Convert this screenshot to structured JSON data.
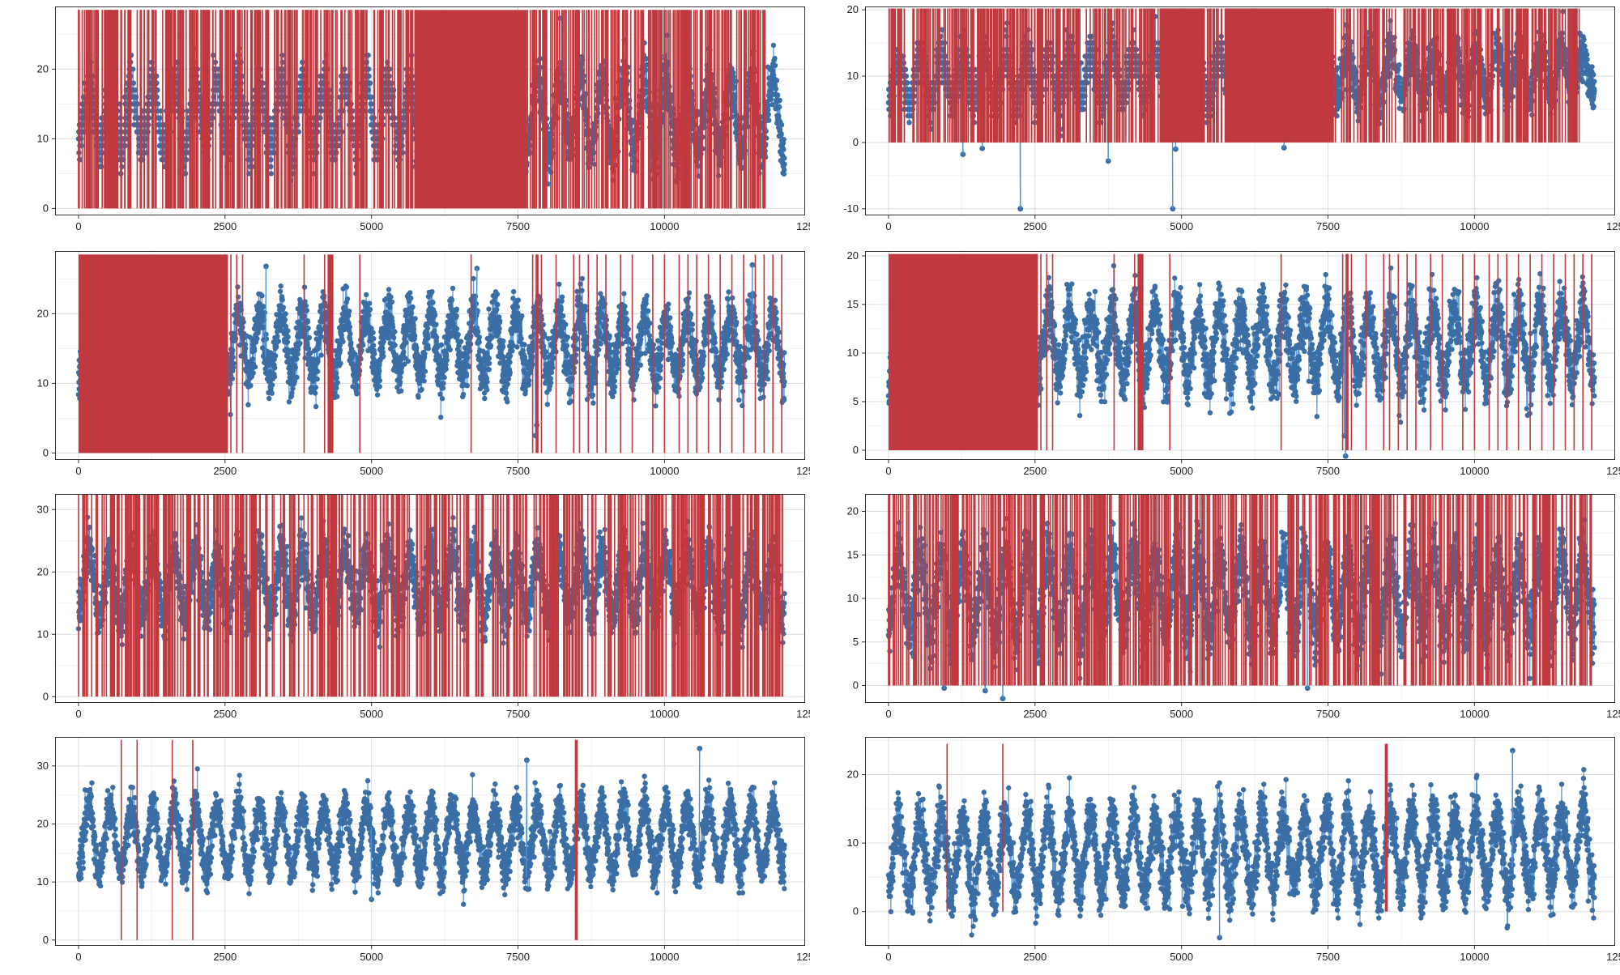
{
  "chart_data": [
    {
      "type": "line",
      "panel": 1,
      "xlim": [
        -400,
        12400
      ],
      "ylim": [
        -1,
        29
      ],
      "x_ticks": [
        0,
        2500,
        5000,
        7500,
        10000,
        12500
      ],
      "y_ticks": [
        0,
        10,
        20
      ],
      "grid": true,
      "legend": "none",
      "series": [
        {
          "values": {
            "n_points": 12050,
            "mean": 13.5,
            "seasonal_amplitude": 4.5,
            "period": 365,
            "noise": 1.8,
            "spike_min": -9.5,
            "spike_max": 27.5,
            "mean_trend_per_day": 0.0,
            "amp_trend_per_day": 8e-05,
            "outliers": [
              [
                8220,
                27.3
              ]
            ],
            "discrete_until": 5750
          },
          "color": "#3a6ea5",
          "line_color": "#4a90d9"
        },
        {
          "values": {
            "span_start": 0,
            "span_end": 11800,
            "top": 28.5,
            "bottom": 0,
            "density_per_day": 0.05,
            "dense_blocks": [
              [
                5750,
                7650
              ]
            ],
            "tail_lines": [
              8150,
              8250,
              8450,
              8600,
              8950,
              9150,
              9300,
              9800,
              10100,
              10300,
              10500,
              10800,
              11050,
              11300,
              11550
            ]
          },
          "color": "#c0393e"
        }
      ]
    },
    {
      "type": "line",
      "panel": 2,
      "xlim": [
        -400,
        12400
      ],
      "ylim": [
        -11,
        20.5
      ],
      "x_ticks": [
        0,
        2500,
        5000,
        7500,
        10000,
        12500
      ],
      "y_ticks": [
        -10,
        0,
        10,
        20
      ],
      "grid": true,
      "legend": "none",
      "series": [
        {
          "values": {
            "n_points": 12050,
            "mean": 9.5,
            "seasonal_amplitude": 3.5,
            "period": 365,
            "noise": 1.7,
            "spike_min": -9.5,
            "spike_max": 27.5,
            "mean_trend_per_day": 0.0001,
            "amp_trend_per_day": 0.0,
            "outliers": [
              [
                1270,
                -1.8
              ],
              [
                1600,
                -0.9
              ],
              [
                2250,
                -10
              ],
              [
                3750,
                -2.8
              ],
              [
                4850,
                -10
              ],
              [
                4900,
                -1
              ],
              [
                6750,
                -0.8
              ],
              [
                10600,
                13.5
              ],
              [
                11500,
                16.5
              ]
            ],
            "discrete_until": 5750
          },
          "color": "#3a6ea5",
          "line_color": "#4a90d9"
        },
        {
          "values": {
            "span_start": 0,
            "span_end": 11800,
            "top": 20.2,
            "bottom": 0,
            "density_per_day": 0.05,
            "dense_blocks": [
              [
                2550,
                2620
              ],
              [
                4650,
                5400
              ],
              [
                5750,
                7600
              ]
            ],
            "tail_lines": [
              8150,
              8300,
              8500,
              8650,
              8850,
              9050,
              9250,
              9450,
              9600,
              9850,
              10050,
              10300,
              10550,
              10750,
              11050,
              11300,
              11550,
              11750
            ]
          },
          "color": "#c0393e"
        }
      ]
    },
    {
      "type": "line",
      "panel": 3,
      "xlim": [
        -400,
        12400
      ],
      "ylim": [
        -1,
        29
      ],
      "x_ticks": [
        0,
        2500,
        5000,
        7500,
        10000,
        12500
      ],
      "y_ticks": [
        0,
        10,
        20
      ],
      "grid": true,
      "legend": "none",
      "series": [
        {
          "values": {
            "n_points": 12050,
            "mean": 15.5,
            "seasonal_amplitude": 4.5,
            "period": 365,
            "noise": 1.8,
            "spike_min": -9.5,
            "spike_max": 27.5,
            "mean_trend_per_day": 0.0,
            "amp_trend_per_day": 0.0,
            "outliers": [
              [
                3200,
                26.8
              ],
              [
                6800,
                26.5
              ],
              [
                7800,
                2.5
              ],
              [
                11500,
                27
              ],
              [
                7820,
                4
              ]
            ],
            "discrete_until": 0
          },
          "color": "#3a6ea5",
          "line_color": "#4a90d9"
        },
        {
          "values": {
            "span_start": 0,
            "span_end": 2550,
            "top": 28.5,
            "bottom": 0,
            "density_per_day": 0,
            "dense_blocks": [
              [
                0,
                2550
              ],
              [
                4250,
                4350
              ],
              [
                7800,
                7850
              ]
            ],
            "tail_lines": [
              2600,
              2700,
              2800,
              3850,
              4200,
              4800,
              6700,
              7750,
              7900,
              8150,
              8450,
              8550,
              8700,
              8850,
              9000,
              9250,
              9450,
              9800,
              10000,
              10250,
              10400,
              10550,
              10750,
              10950,
              11150,
              11350,
              11550,
              11700,
              11850,
              12000
            ]
          },
          "color": "#c0393e"
        }
      ]
    },
    {
      "type": "line",
      "panel": 4,
      "xlim": [
        -400,
        12400
      ],
      "ylim": [
        -1,
        20.5
      ],
      "x_ticks": [
        0,
        2500,
        5000,
        7500,
        10000,
        12500
      ],
      "y_ticks": [
        0,
        5,
        10,
        15,
        20
      ],
      "grid": true,
      "legend": "none",
      "series": [
        {
          "values": {
            "n_points": 12050,
            "mean": 11.0,
            "seasonal_amplitude": 3.5,
            "period": 365,
            "noise": 1.5,
            "spike_min": -9.5,
            "spike_max": 27.5,
            "mean_trend_per_day": 0.0,
            "amp_trend_per_day": 0.0,
            "outliers": [
              [
                7800,
                -0.6
              ],
              [
                7780,
                1.5
              ]
            ],
            "discrete_until": 0
          },
          "color": "#3a6ea5",
          "line_color": "#4a90d9"
        },
        {
          "values": {
            "span_start": 0,
            "span_end": 2550,
            "top": 20.2,
            "bottom": 0,
            "density_per_day": 0,
            "dense_blocks": [
              [
                0,
                2550
              ],
              [
                4250,
                4350
              ],
              [
                7800,
                7850
              ]
            ],
            "tail_lines": [
              2600,
              2700,
              2800,
              3850,
              4200,
              4800,
              6700,
              7750,
              7900,
              8150,
              8450,
              8550,
              8700,
              8850,
              9000,
              9250,
              9450,
              9800,
              10000,
              10250,
              10400,
              10550,
              10750,
              10950,
              11150,
              11350,
              11550,
              11700,
              11850,
              12000
            ]
          },
          "color": "#c0393e"
        }
      ]
    },
    {
      "type": "line",
      "panel": 5,
      "xlim": [
        -400,
        12400
      ],
      "ylim": [
        -1,
        32.5
      ],
      "x_ticks": [
        0,
        2500,
        5000,
        7500,
        10000,
        12500
      ],
      "y_ticks": [
        0,
        10,
        20,
        30
      ],
      "grid": true,
      "legend": "none",
      "series": [
        {
          "values": {
            "n_points": 12050,
            "mean": 18.0,
            "seasonal_amplitude": 5.0,
            "period": 365,
            "noise": 2.0,
            "spike_min": -9.5,
            "spike_max": 27.5,
            "mean_trend_per_day": 0.0,
            "amp_trend_per_day": 0.0,
            "outliers": [],
            "discrete_until": 0
          },
          "color": "#3a6ea5",
          "line_color": "#4a90d9"
        },
        {
          "values": {
            "span_start": 0,
            "span_end": 12050,
            "top": 32.5,
            "bottom": 0,
            "density_per_day": 0.045,
            "dense_blocks": [
              [
                11150,
                11300
              ]
            ],
            "tail_lines": []
          },
          "color": "#c0393e"
        }
      ]
    },
    {
      "type": "line",
      "panel": 6,
      "xlim": [
        -400,
        12400
      ],
      "ylim": [
        -2,
        22
      ],
      "x_ticks": [
        0,
        2500,
        5000,
        7500,
        10000,
        12500
      ],
      "y_ticks": [
        0,
        5,
        10,
        15,
        20
      ],
      "grid": true,
      "legend": "none",
      "series": [
        {
          "values": {
            "n_points": 12050,
            "mean": 10.5,
            "seasonal_amplitude": 4.5,
            "period": 365,
            "noise": 1.8,
            "spike_min": -9.5,
            "spike_max": 27.5,
            "mean_trend_per_day": 0.0,
            "amp_trend_per_day": 0.0,
            "outliers": [
              [
                950,
                -0.3
              ],
              [
                1650,
                -0.6
              ],
              [
                1950,
                -1.5
              ],
              [
                7150,
                -0.3
              ]
            ],
            "discrete_until": 0
          },
          "color": "#3a6ea5",
          "line_color": "#4a90d9"
        },
        {
          "values": {
            "span_start": 0,
            "span_end": 12050,
            "top": 22,
            "bottom": 0,
            "density_per_day": 0.045,
            "dense_blocks": [
              [
                11150,
                11300
              ]
            ],
            "tail_lines": []
          },
          "color": "#c0393e"
        }
      ]
    },
    {
      "type": "line",
      "panel": 7,
      "xlim": [
        -400,
        12400
      ],
      "ylim": [
        -1,
        35
      ],
      "x_ticks": [
        0,
        2500,
        5000,
        7500,
        10000,
        12500
      ],
      "y_ticks": [
        0,
        10,
        20,
        30
      ],
      "grid": true,
      "legend": "none",
      "series": [
        {
          "values": {
            "n_points": 12050,
            "mean": 17.5,
            "seasonal_amplitude": 5.5,
            "period": 365,
            "noise": 1.8,
            "spike_min": -9.5,
            "spike_max": 27.5,
            "mean_trend_per_day": 0.0,
            "amp_trend_per_day": 0.0,
            "outliers": [
              [
                10600,
                33
              ],
              [
                7650,
                31
              ],
              [
                5000,
                7
              ]
            ],
            "discrete_until": 0
          },
          "color": "#3a6ea5",
          "line_color": "#4a90d9"
        },
        {
          "values": {
            "span_start": 0,
            "span_end": 0,
            "top": 34.5,
            "bottom": 0,
            "density_per_day": 0,
            "dense_blocks": [
              [
                8470,
                8520
              ]
            ],
            "tail_lines": [
              730,
              1000,
              1600,
              1950
            ]
          },
          "color": "#c0393e"
        }
      ]
    },
    {
      "type": "line",
      "panel": 8,
      "xlim": [
        -400,
        12400
      ],
      "ylim": [
        -5,
        25.5
      ],
      "x_ticks": [
        0,
        2500,
        5000,
        7500,
        10000,
        12500
      ],
      "y_ticks": [
        0,
        10,
        20
      ],
      "grid": true,
      "legend": "none",
      "series": [
        {
          "values": {
            "n_points": 12050,
            "mean": 8.0,
            "seasonal_amplitude": 5.5,
            "period": 365,
            "noise": 2.0,
            "spike_min": -9.5,
            "spike_max": 27.5,
            "mean_trend_per_day": 0.0001,
            "amp_trend_per_day": 0.0,
            "outliers": [
              [
                10650,
                23.5
              ],
              [
                5650,
                -3.8
              ]
            ],
            "discrete_until": 0
          },
          "color": "#3a6ea5",
          "line_color": "#4a90d9"
        },
        {
          "values": {
            "span_start": 0,
            "span_end": 0,
            "top": 24.5,
            "bottom": 0,
            "density_per_day": 0,
            "dense_blocks": [
              [
                8470,
                8520
              ]
            ],
            "tail_lines": [
              1000,
              1950
            ]
          },
          "color": "#c0393e"
        }
      ]
    }
  ]
}
